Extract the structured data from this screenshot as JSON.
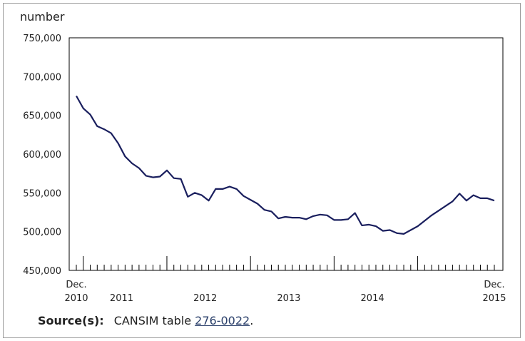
{
  "unit_label": "number",
  "source": {
    "label": "Source(s):",
    "text": "CANSIM table ",
    "link_text": "276-0022",
    "suffix": "."
  },
  "chart_data": {
    "type": "line",
    "title": "",
    "xlabel": "",
    "ylabel": "number",
    "ylim": [
      450000,
      750000
    ],
    "yticks": [
      "450,000",
      "500,000",
      "550,000",
      "600,000",
      "650,000",
      "700,000",
      "750,000"
    ],
    "x_start": "2010-12",
    "x_end": "2015-12",
    "x_labels": [
      {
        "month_index": 0,
        "lines": [
          "Dec.",
          "2010"
        ]
      },
      {
        "month_index": 6.5,
        "lines": [
          "",
          "2011"
        ]
      },
      {
        "month_index": 18.5,
        "lines": [
          "",
          "2012"
        ]
      },
      {
        "month_index": 30.5,
        "lines": [
          "",
          "2013"
        ]
      },
      {
        "month_index": 42.5,
        "lines": [
          "",
          "2014"
        ]
      },
      {
        "month_index": 60,
        "lines": [
          "Dec.",
          "2015"
        ]
      }
    ],
    "grid": false,
    "line_color": "#1a1f5e",
    "series": [
      {
        "name": "",
        "values": [
          675000,
          659000,
          651000,
          636000,
          632000,
          627000,
          614000,
          597000,
          588000,
          582000,
          572000,
          570000,
          571000,
          579000,
          569000,
          568000,
          545000,
          550000,
          547000,
          540000,
          555000,
          555000,
          558000,
          555000,
          546000,
          541000,
          536000,
          528000,
          526000,
          517000,
          519000,
          518000,
          518000,
          516000,
          520000,
          522000,
          521000,
          515000,
          515000,
          516000,
          524000,
          508000,
          509000,
          507000,
          501000,
          502000,
          498000,
          497000,
          502000,
          507000,
          514000,
          521000,
          527000,
          533000,
          539000,
          549000,
          540000,
          547000,
          543000,
          543000,
          540000
        ]
      }
    ]
  }
}
